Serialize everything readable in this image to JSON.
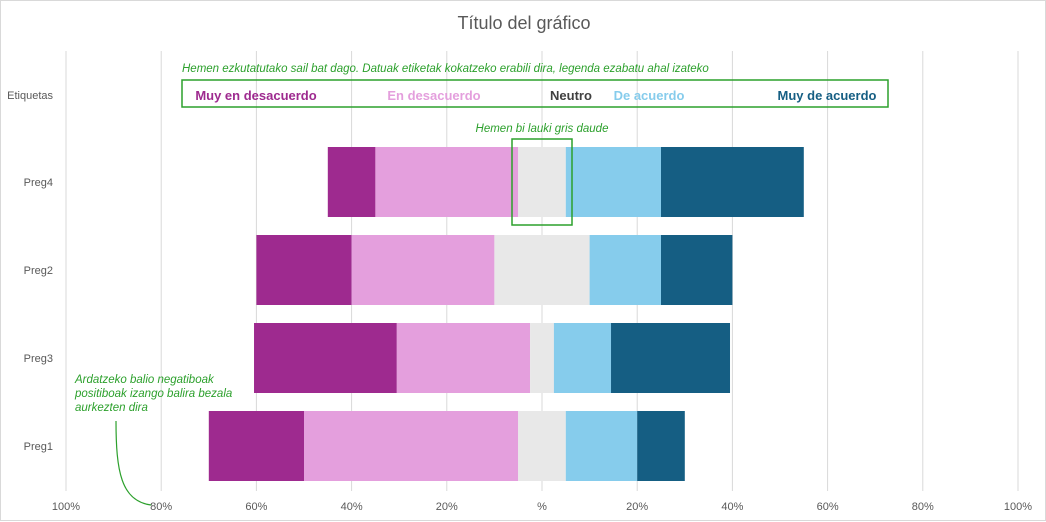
{
  "chart_data": {
    "type": "bar",
    "orientation": "horizontal",
    "stacked": "diverging",
    "title": "Título del gráfico",
    "categories": [
      "Etiquetas",
      "Preg4",
      "Preg2",
      "Preg3",
      "Preg1"
    ],
    "series": [
      {
        "name": "Muy en desacuerdo",
        "color": "#9e2a8f",
        "values": [
          null,
          10,
          20,
          30,
          20
        ]
      },
      {
        "name": "En desacuerdo",
        "color": "#e49fdd",
        "values": [
          null,
          30,
          30,
          28,
          45
        ]
      },
      {
        "name": "Neutro",
        "color": "#e8e8e8",
        "values": [
          null,
          10,
          20,
          5,
          10
        ]
      },
      {
        "name": "De acuerdo",
        "color": "#86ccec",
        "values": [
          null,
          20,
          15,
          12,
          15
        ]
      },
      {
        "name": "Muy de acuerdo",
        "color": "#155e83",
        "values": [
          null,
          30,
          15,
          25,
          10
        ]
      }
    ],
    "x_tick_labels": [
      "100%",
      "80%",
      "60%",
      "40%",
      "20%",
      "%",
      "20%",
      "40%",
      "60%",
      "80%",
      "100%"
    ],
    "xlim": [
      -100,
      100
    ],
    "grid": true,
    "legend_row_colors": {
      "Muy en desacuerdo": "#9e2a8f",
      "En desacuerdo": "#e49fdd",
      "Neutro": "#404040",
      "De acuerdo": "#86ccec",
      "Muy de acuerdo": "#155e83"
    },
    "annotations": {
      "legend_note": "Hemen ezkutatutako sail bat dago. Datuak etiketak kokatzeko erabili dira, legenda ezabatu ahal izateko",
      "neutral_note": "Hemen bi lauki gris daude",
      "axis_note": [
        "Ardatzeko balio negatiboak",
        "positiboak izango balira bezala",
        "aurkezten dira"
      ]
    },
    "annotation_color": "#2ca02c"
  }
}
